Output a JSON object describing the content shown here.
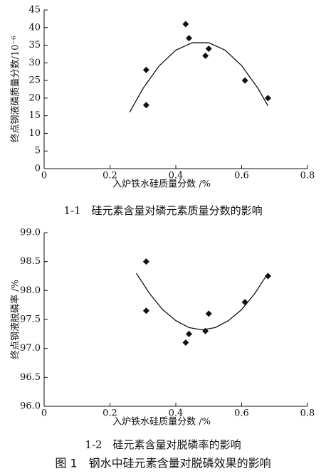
{
  "figure_caption": "图 1　钢水中硅元素含量对脱磷效果的影响",
  "chart_data": [
    {
      "type": "scatter",
      "caption": "1-1　硅元素含量对磷元素质量分数的影响",
      "xlabel": "入炉铁水硅质量分数 /%",
      "ylabel": "终点钢液磷质量分数/10⁻⁶",
      "xlim": [
        0,
        0.8
      ],
      "xticks": [
        0,
        0.2,
        0.4,
        0.6,
        0.8
      ],
      "ylim": [
        0,
        45
      ],
      "yticks": [
        0,
        5,
        10,
        15,
        20,
        25,
        30,
        35,
        40,
        45
      ],
      "color": "#111111",
      "points": {
        "x": [
          0.31,
          0.31,
          0.43,
          0.44,
          0.49,
          0.5,
          0.61,
          0.68
        ],
        "y": [
          28,
          18,
          41,
          37,
          32,
          34,
          25,
          20
        ]
      },
      "trend": {
        "x": [
          0.26,
          0.3,
          0.35,
          0.4,
          0.45,
          0.5,
          0.55,
          0.6,
          0.65,
          0.68
        ],
        "y": [
          16,
          22.7,
          29.2,
          33.6,
          35.7,
          35.7,
          33.6,
          29.2,
          22.7,
          17.8
        ]
      }
    },
    {
      "type": "scatter",
      "caption": "1-2　硅元素含量对脱磷率的影响",
      "xlabel": "入炉铁水硅质量分数 /%",
      "ylabel": "终点钢液脱磷率 /%",
      "xlim": [
        0,
        0.8
      ],
      "xticks": [
        0,
        0.2,
        0.4,
        0.6,
        0.8
      ],
      "ylim": [
        96.0,
        99.0
      ],
      "yticks": [
        {
          "value": 96,
          "label": "96.0"
        },
        96.5,
        {
          "value": 97,
          "label": "97.0"
        },
        97.5,
        {
          "value": 98,
          "label": "98.0"
        },
        98.5,
        {
          "value": 99,
          "label": "99.0"
        }
      ],
      "color": "#111111",
      "points": {
        "x": [
          0.31,
          0.31,
          0.43,
          0.44,
          0.49,
          0.5,
          0.61,
          0.68
        ],
        "y": [
          98.5,
          97.65,
          97.1,
          97.25,
          97.3,
          97.6,
          97.8,
          98.25
        ]
      },
      "trend": {
        "x": [
          0.28,
          0.32,
          0.36,
          0.4,
          0.44,
          0.48,
          0.52,
          0.56,
          0.6,
          0.64,
          0.68
        ],
        "y": [
          98.3,
          97.95,
          97.67,
          97.48,
          97.36,
          97.32,
          97.36,
          97.48,
          97.67,
          97.95,
          98.3
        ]
      }
    }
  ]
}
